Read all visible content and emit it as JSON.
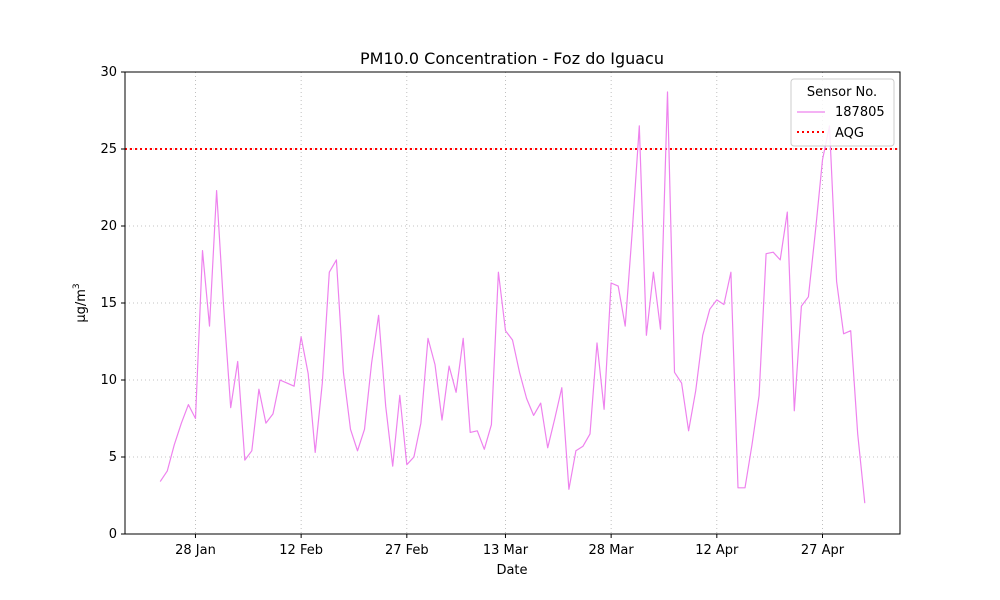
{
  "chart_data": {
    "type": "line",
    "title": "PM10.0 Concentration - Foz do Iguacu",
    "xlabel": "Date",
    "ylabel": "μg/m",
    "ylabel_sup": "3",
    "ylim": [
      0,
      30
    ],
    "yticks": [
      0,
      5,
      10,
      15,
      20,
      25,
      30
    ],
    "xlim": [
      "2023-01-18",
      "2023-05-08"
    ],
    "xticks": [
      {
        "date": "2023-01-28",
        "label": "28 Jan"
      },
      {
        "date": "2023-02-12",
        "label": "12 Feb"
      },
      {
        "date": "2023-02-27",
        "label": "27 Feb"
      },
      {
        "date": "2023-03-13",
        "label": "13 Mar"
      },
      {
        "date": "2023-03-28",
        "label": "28 Mar"
      },
      {
        "date": "2023-04-12",
        "label": "12 Apr"
      },
      {
        "date": "2023-04-27",
        "label": "27 Apr"
      }
    ],
    "grid": true,
    "legend": {
      "title": "Sensor No.",
      "placement": "top-right"
    },
    "series": [
      {
        "name": "187805",
        "color": "#ee82ee",
        "start_date": "2023-01-23",
        "values": [
          3.4,
          4.1,
          5.8,
          7.2,
          8.4,
          7.5,
          18.4,
          13.5,
          22.3,
          14.8,
          8.2,
          11.2,
          4.8,
          5.4,
          9.4,
          7.2,
          7.8,
          10.0,
          9.8,
          9.6,
          12.8,
          10.4,
          5.3,
          9.8,
          17.0,
          17.8,
          10.5,
          6.8,
          5.4,
          6.8,
          11.1,
          14.2,
          8.3,
          4.4,
          9.0,
          4.5,
          5.0,
          7.2,
          12.7,
          11.0,
          7.4,
          10.9,
          9.2,
          12.7,
          6.6,
          6.7,
          5.5,
          7.1,
          17.0,
          13.2,
          12.6,
          10.5,
          8.8,
          7.7,
          8.5,
          5.6,
          7.5,
          9.5,
          2.9,
          5.4,
          5.7,
          6.5,
          12.4,
          8.1,
          16.3,
          16.1,
          13.5,
          19.7,
          26.5,
          12.9,
          17.0,
          13.3,
          28.7,
          10.5,
          9.8,
          6.7,
          9.3,
          12.9,
          14.6,
          15.2,
          14.9,
          17.0,
          3.0,
          3.0,
          5.8,
          9.0,
          18.2,
          18.3,
          17.8,
          20.9,
          8.0,
          14.8,
          15.4,
          19.7,
          24.3,
          26.5,
          16.4,
          13.0,
          13.2,
          6.5,
          2.0
        ]
      }
    ],
    "reference_lines": [
      {
        "name": "AQG",
        "value": 25,
        "color": "#ff0000",
        "style": "dotted"
      }
    ]
  }
}
